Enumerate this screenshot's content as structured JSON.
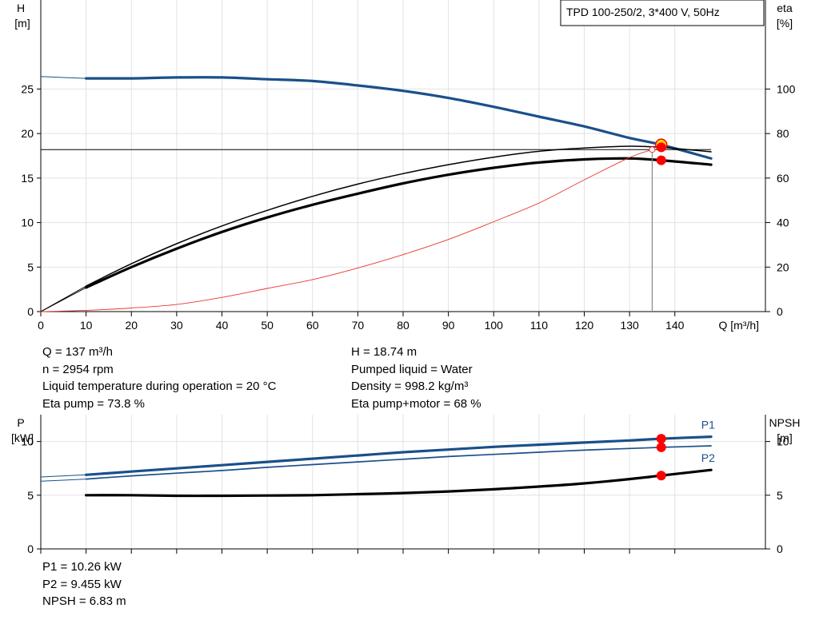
{
  "title_box": "TPD 100-250/2, 3*400 V, 50Hz",
  "colors": {
    "head": "#1a4f8a",
    "power": "#1a4f8a",
    "eta": "#000000",
    "system_curve": "#e8362e",
    "marker": "#ff0000"
  },
  "chart_data": [
    {
      "type": "line",
      "name": "head-efficiency",
      "xlabel": "Q [m³/h]",
      "xlim": [
        0,
        160
      ],
      "xticks": [
        0,
        10,
        20,
        30,
        40,
        50,
        60,
        70,
        80,
        90,
        100,
        110,
        120,
        130,
        140
      ],
      "y_left": {
        "label_1": "H",
        "label_2": "[m]",
        "ylim": [
          0,
          35
        ],
        "ticks": [
          0,
          5,
          10,
          15,
          20,
          25
        ]
      },
      "y_right": {
        "label_1": "eta",
        "label_2": "[%]",
        "ylim": [
          0,
          140
        ],
        "ticks": [
          0,
          20,
          40,
          60,
          80,
          100
        ]
      },
      "series": [
        {
          "key": "H",
          "axis": "left",
          "x": [
            0,
            10,
            20,
            30,
            40,
            50,
            60,
            70,
            80,
            90,
            100,
            110,
            120,
            130,
            137,
            148
          ],
          "y": [
            26.4,
            26.2,
            26.2,
            26.3,
            26.3,
            26.1,
            25.9,
            25.4,
            24.8,
            24.0,
            23.0,
            21.9,
            20.8,
            19.5,
            18.74,
            17.2
          ]
        },
        {
          "key": "eta_pump",
          "axis": "right",
          "x": [
            0,
            10,
            20,
            30,
            40,
            50,
            60,
            70,
            80,
            90,
            100,
            110,
            120,
            130,
            137,
            148
          ],
          "y": [
            0,
            11.5,
            21.5,
            30.5,
            38.5,
            45.5,
            51.8,
            57.3,
            62.0,
            66.0,
            69.4,
            72.0,
            73.5,
            74.3,
            73.8,
            71.8
          ]
        },
        {
          "key": "eta_total",
          "axis": "right",
          "x": [
            0,
            10,
            20,
            30,
            40,
            50,
            60,
            70,
            80,
            90,
            100,
            110,
            120,
            130,
            137,
            148
          ],
          "y": [
            0,
            10.8,
            20.0,
            28.3,
            35.8,
            42.3,
            48.0,
            53.0,
            57.6,
            61.5,
            64.6,
            67.0,
            68.4,
            68.8,
            68.0,
            66.0
          ]
        },
        {
          "key": "system",
          "axis": "left",
          "x": [
            0,
            10,
            20,
            30,
            40,
            50,
            60,
            70,
            80,
            90,
            100,
            110,
            120,
            130,
            135
          ],
          "y": [
            0,
            0.14,
            0.4,
            0.8,
            1.6,
            2.6,
            3.6,
            4.9,
            6.4,
            8.1,
            10.1,
            12.2,
            14.8,
            17.3,
            18.2
          ]
        }
      ],
      "duty_point": {
        "Q": 137,
        "H": 18.74,
        "eta_pump": 73.8,
        "eta_total": 68
      },
      "reference_line": {
        "H": 18.2,
        "Q": 135
      }
    },
    {
      "type": "line",
      "name": "power-npsh",
      "xlim": [
        0,
        160
      ],
      "xticks": [
        0,
        10,
        20,
        30,
        40,
        50,
        60,
        70,
        80,
        90,
        100,
        110,
        120,
        130,
        140
      ],
      "y_left": {
        "label_1": "P",
        "label_2": "[kW]",
        "ylim": [
          0,
          12.5
        ],
        "ticks": [
          0,
          5,
          10
        ]
      },
      "y_right": {
        "label_1": "NPSH",
        "label_2": "[m]",
        "ylim": [
          0,
          12.5
        ],
        "ticks": [
          0,
          5,
          10
        ]
      },
      "series": [
        {
          "key": "P1",
          "name": "P1",
          "axis": "left",
          "x": [
            0,
            10,
            20,
            30,
            40,
            50,
            60,
            70,
            80,
            90,
            100,
            110,
            120,
            130,
            137,
            148
          ],
          "y": [
            6.7,
            6.9,
            7.2,
            7.5,
            7.8,
            8.1,
            8.4,
            8.7,
            9.0,
            9.25,
            9.5,
            9.7,
            9.9,
            10.1,
            10.26,
            10.45
          ]
        },
        {
          "key": "P2",
          "name": "P2",
          "axis": "left",
          "x": [
            0,
            10,
            20,
            30,
            40,
            50,
            60,
            70,
            80,
            90,
            100,
            110,
            120,
            130,
            137,
            148
          ],
          "y": [
            6.3,
            6.5,
            6.8,
            7.05,
            7.3,
            7.6,
            7.85,
            8.1,
            8.35,
            8.6,
            8.8,
            9.0,
            9.2,
            9.35,
            9.455,
            9.6
          ]
        },
        {
          "key": "NPSH",
          "axis": "right",
          "x": [
            10,
            20,
            30,
            40,
            50,
            60,
            70,
            80,
            90,
            100,
            110,
            120,
            130,
            137,
            148
          ],
          "y": [
            5.0,
            5.0,
            4.95,
            4.95,
            4.97,
            5.0,
            5.1,
            5.2,
            5.35,
            5.55,
            5.8,
            6.1,
            6.5,
            6.83,
            7.35
          ]
        }
      ],
      "duty_point": {
        "Q": 137,
        "P1": 10.26,
        "P2": 9.455,
        "NPSH": 6.83
      }
    }
  ],
  "operating_info": {
    "left": [
      "Q = 137 m³/h",
      "n = 2954 rpm",
      "Liquid temperature during operation = 20 °C",
      "Eta pump = 73.8 %"
    ],
    "right": [
      "H = 18.74 m",
      "Pumped liquid = Water",
      "Density = 998.2 kg/m³",
      "Eta pump+motor = 68 %"
    ]
  },
  "power_info": [
    "P1 = 10.26 kW",
    "P2 = 9.455 kW",
    "NPSH = 6.83 m"
  ]
}
